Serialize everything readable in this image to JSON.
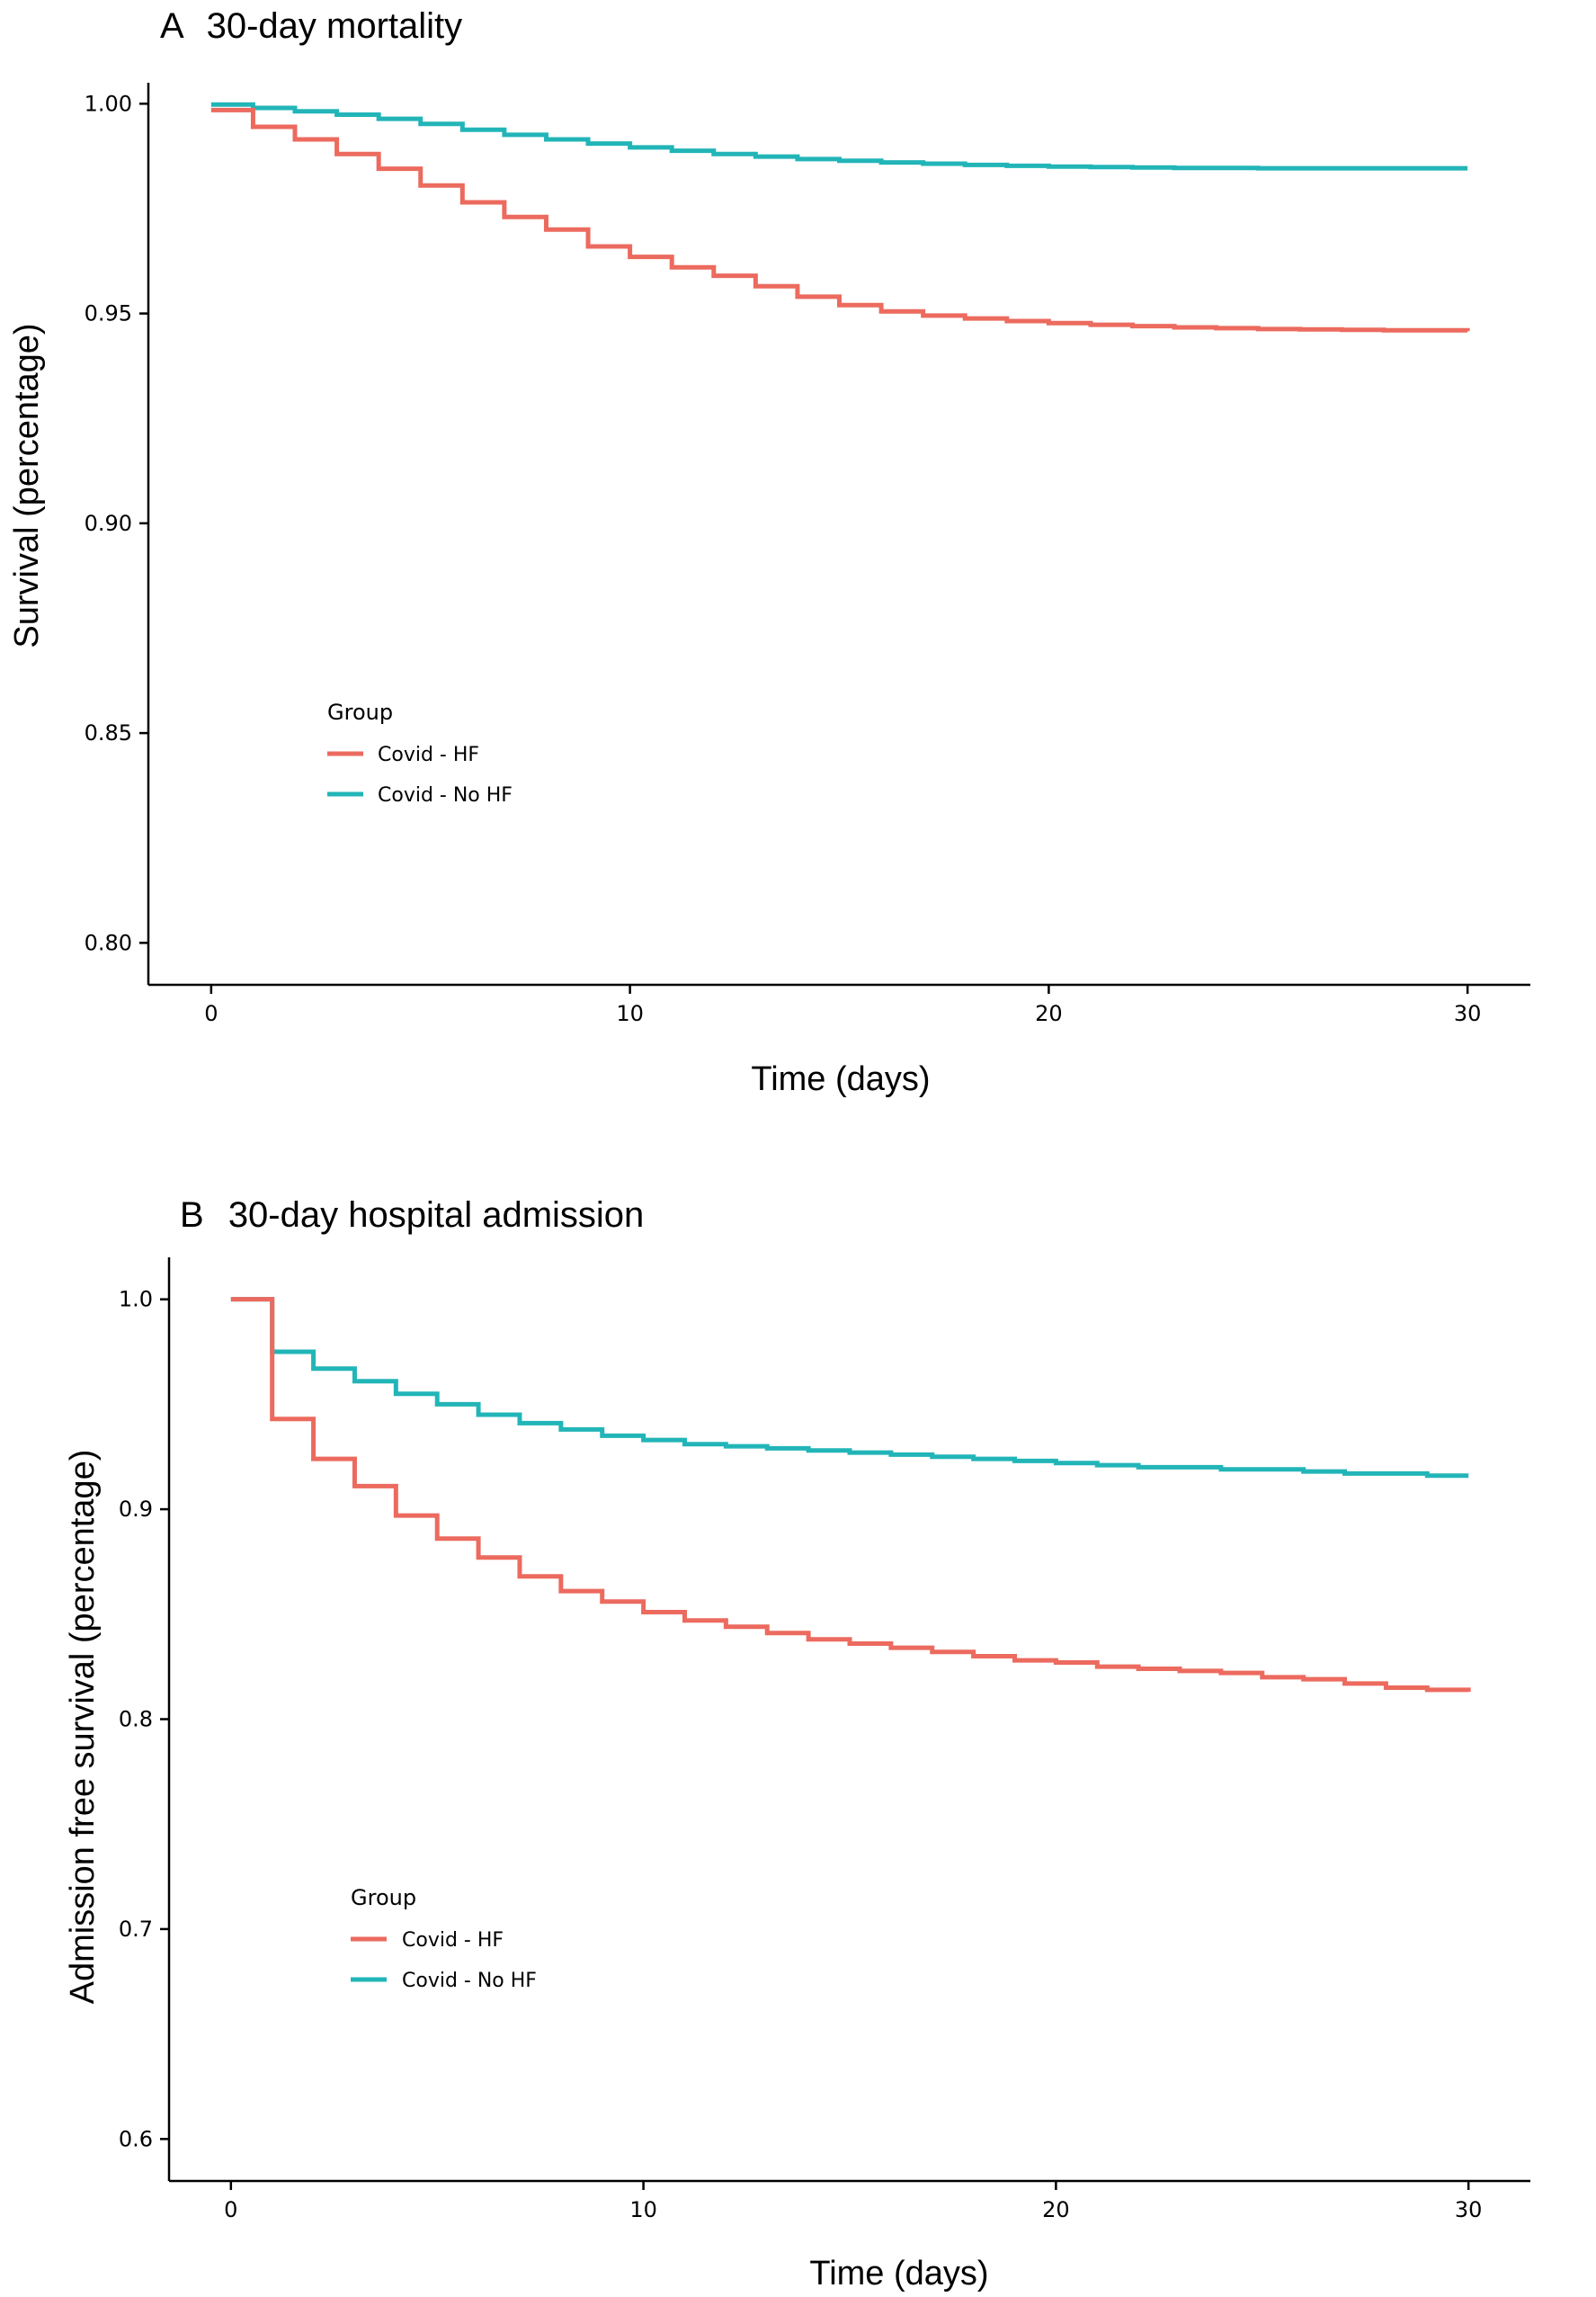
{
  "colors": {
    "hf": "#ec6a5e",
    "nohf": "#22b5b8"
  },
  "chart_data": [
    {
      "type": "line",
      "panel_label": "A",
      "title": "30-day mortality",
      "xlabel": "Time (days)",
      "ylabel": "Survival (percentage)",
      "xlim": [
        -1.5,
        31.5
      ],
      "ylim": [
        0.79,
        1.005
      ],
      "xticks": [
        0,
        10,
        20,
        30
      ],
      "xtick_labels": [
        "0",
        "10",
        "20",
        "30"
      ],
      "yticks": [
        0.8,
        0.85,
        0.9,
        0.95,
        1.0
      ],
      "ytick_labels": [
        "0.80",
        "0.85",
        "0.90",
        "0.95",
        "1.00"
      ],
      "grid": false,
      "legend": {
        "title": "Group",
        "placement": "left-middle"
      },
      "x": [
        0,
        1,
        2,
        3,
        4,
        5,
        6,
        7,
        8,
        9,
        10,
        11,
        12,
        13,
        14,
        15,
        16,
        17,
        18,
        19,
        20,
        21,
        22,
        23,
        24,
        25,
        26,
        27,
        28,
        29,
        30
      ],
      "series": [
        {
          "name": "Covid - HF",
          "color_key": "hf",
          "values": [
            0.9985,
            0.9945,
            0.9915,
            0.988,
            0.9845,
            0.9805,
            0.9765,
            0.973,
            0.97,
            0.966,
            0.9635,
            0.961,
            0.959,
            0.9565,
            0.954,
            0.952,
            0.9505,
            0.9495,
            0.9488,
            0.9482,
            0.9477,
            0.9473,
            0.947,
            0.9467,
            0.9465,
            0.9463,
            0.9462,
            0.9461,
            0.946,
            0.946,
            0.9458
          ]
        },
        {
          "name": "Covid - No HF",
          "color_key": "nohf",
          "values": [
            0.9998,
            0.999,
            0.9982,
            0.9974,
            0.9964,
            0.9952,
            0.9938,
            0.9926,
            0.9915,
            0.9905,
            0.9896,
            0.9888,
            0.988,
            0.9874,
            0.9868,
            0.9864,
            0.986,
            0.9857,
            0.9854,
            0.9852,
            0.985,
            0.9849,
            0.9848,
            0.9847,
            0.9847,
            0.9846,
            0.9846,
            0.9846,
            0.9846,
            0.9846,
            0.9846
          ]
        }
      ]
    },
    {
      "type": "line",
      "panel_label": "B",
      "title": "30-day hospital admission",
      "xlabel": "Time (days)",
      "ylabel": "Admission free survival (percentage)",
      "xlim": [
        -1.5,
        31.5
      ],
      "ylim": [
        0.58,
        1.02
      ],
      "xticks": [
        0,
        10,
        20,
        30
      ],
      "xtick_labels": [
        "0",
        "10",
        "20",
        "30"
      ],
      "yticks": [
        0.6,
        0.7,
        0.8,
        0.9,
        1.0
      ],
      "ytick_labels": [
        "0.6",
        "0.7",
        "0.8",
        "0.9",
        "1.0"
      ],
      "grid": false,
      "legend": {
        "title": "Group",
        "placement": "left-bottom"
      },
      "x": [
        0,
        1,
        2,
        3,
        4,
        5,
        6,
        7,
        8,
        9,
        10,
        11,
        12,
        13,
        14,
        15,
        16,
        17,
        18,
        19,
        20,
        21,
        22,
        23,
        24,
        25,
        26,
        27,
        28,
        29,
        30
      ],
      "series": [
        {
          "name": "Covid - HF",
          "color_key": "hf",
          "values": [
            1.0,
            0.943,
            0.924,
            0.911,
            0.897,
            0.886,
            0.877,
            0.868,
            0.861,
            0.856,
            0.851,
            0.847,
            0.844,
            0.841,
            0.838,
            0.836,
            0.834,
            0.832,
            0.83,
            0.828,
            0.827,
            0.825,
            0.824,
            0.823,
            0.822,
            0.82,
            0.819,
            0.817,
            0.815,
            0.814,
            0.813
          ]
        },
        {
          "name": "Covid - No HF",
          "color_key": "nohf",
          "values": [
            1.0,
            0.975,
            0.967,
            0.961,
            0.955,
            0.95,
            0.945,
            0.941,
            0.938,
            0.935,
            0.933,
            0.931,
            0.93,
            0.929,
            0.928,
            0.927,
            0.926,
            0.925,
            0.924,
            0.923,
            0.922,
            0.921,
            0.92,
            0.92,
            0.919,
            0.919,
            0.918,
            0.917,
            0.917,
            0.916,
            0.916
          ]
        }
      ]
    }
  ]
}
